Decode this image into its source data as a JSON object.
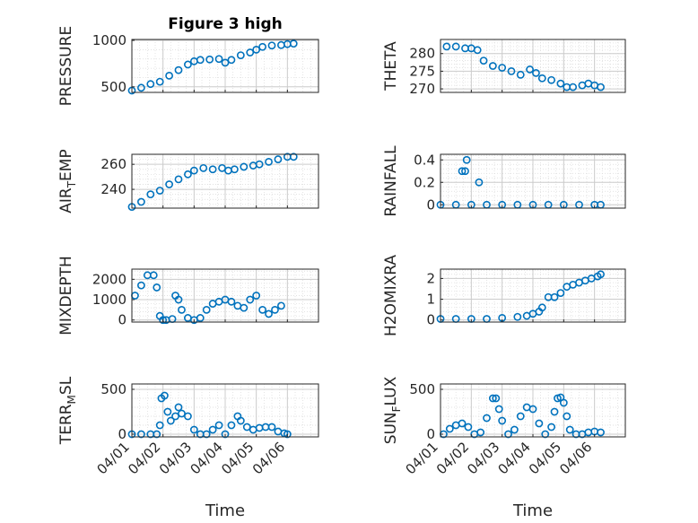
{
  "figure_title": "Figure 3 high",
  "xlabel": "Time",
  "x_ticks": [
    "04/01",
    "04/02",
    "04/03",
    "04/04",
    "04/05",
    "04/06"
  ],
  "marker_color": "#0072BD",
  "chart_data": [
    {
      "type": "scatter",
      "id": "p1",
      "title": "Figure 3 high",
      "ylabel": "PRESSURE",
      "ylim": [
        440,
        1010
      ],
      "yticks": [
        {
          "v": 500,
          "t": "500"
        },
        {
          "v": 1000,
          "t": "1000"
        }
      ],
      "points": [
        [
          0,
          460
        ],
        [
          0.3,
          490
        ],
        [
          0.6,
          530
        ],
        [
          0.9,
          555
        ],
        [
          1.2,
          620
        ],
        [
          1.5,
          680
        ],
        [
          1.8,
          740
        ],
        [
          2.0,
          775
        ],
        [
          2.2,
          790
        ],
        [
          2.5,
          795
        ],
        [
          2.8,
          800
        ],
        [
          3.0,
          760
        ],
        [
          3.2,
          790
        ],
        [
          3.5,
          840
        ],
        [
          3.8,
          870
        ],
        [
          4.0,
          900
        ],
        [
          4.2,
          930
        ],
        [
          4.5,
          945
        ],
        [
          4.8,
          950
        ],
        [
          5.0,
          960
        ],
        [
          5.2,
          965
        ]
      ]
    },
    {
      "type": "scatter",
      "id": "p2",
      "ylabel": "THETA",
      "ylim": [
        269,
        284
      ],
      "yticks": [
        {
          "v": 270,
          "t": "270"
        },
        {
          "v": 275,
          "t": "275"
        },
        {
          "v": 280,
          "t": "280"
        }
      ],
      "points": [
        [
          0.2,
          282
        ],
        [
          0.5,
          282
        ],
        [
          0.8,
          281.5
        ],
        [
          1.0,
          281.5
        ],
        [
          1.2,
          281
        ],
        [
          1.4,
          278
        ],
        [
          1.7,
          276.5
        ],
        [
          2.0,
          276
        ],
        [
          2.3,
          275
        ],
        [
          2.6,
          274
        ],
        [
          2.9,
          275.5
        ],
        [
          3.1,
          274.5
        ],
        [
          3.3,
          273
        ],
        [
          3.6,
          272.5
        ],
        [
          3.9,
          271.5
        ],
        [
          4.1,
          270.5
        ],
        [
          4.3,
          270.5
        ],
        [
          4.6,
          271
        ],
        [
          4.8,
          271.5
        ],
        [
          5.0,
          271
        ],
        [
          5.2,
          270.5
        ]
      ]
    },
    {
      "type": "scatter",
      "id": "p3",
      "ylabel": "AIR_TEMP",
      "ylim": [
        225,
        268
      ],
      "yticks": [
        {
          "v": 240,
          "t": "240"
        },
        {
          "v": 260,
          "t": "260"
        }
      ],
      "points": [
        [
          0,
          226
        ],
        [
          0.3,
          230
        ],
        [
          0.6,
          236
        ],
        [
          0.9,
          239
        ],
        [
          1.2,
          244
        ],
        [
          1.5,
          248
        ],
        [
          1.8,
          252
        ],
        [
          2.0,
          255
        ],
        [
          2.3,
          257
        ],
        [
          2.6,
          256
        ],
        [
          2.9,
          257
        ],
        [
          3.1,
          255
        ],
        [
          3.3,
          256
        ],
        [
          3.6,
          258
        ],
        [
          3.9,
          259
        ],
        [
          4.1,
          260
        ],
        [
          4.4,
          262
        ],
        [
          4.7,
          264
        ],
        [
          5.0,
          266
        ],
        [
          5.2,
          266
        ]
      ]
    },
    {
      "type": "scatter",
      "id": "p4",
      "ylabel": "RAINFALL",
      "ylim": [
        -0.03,
        0.45
      ],
      "yticks": [
        {
          "v": 0,
          "t": "0"
        },
        {
          "v": 0.2,
          "t": "0.2"
        },
        {
          "v": 0.4,
          "t": "0.4"
        }
      ],
      "points": [
        [
          0,
          0
        ],
        [
          0.5,
          0
        ],
        [
          1.0,
          0
        ],
        [
          1.5,
          0
        ],
        [
          2.0,
          0
        ],
        [
          2.5,
          0
        ],
        [
          3.0,
          0
        ],
        [
          3.5,
          0
        ],
        [
          4.0,
          0
        ],
        [
          4.5,
          0
        ],
        [
          5.0,
          0
        ],
        [
          5.2,
          0
        ],
        [
          0.7,
          0.3
        ],
        [
          0.8,
          0.3
        ],
        [
          0.85,
          0.4
        ],
        [
          1.25,
          0.2
        ]
      ]
    },
    {
      "type": "scatter",
      "id": "p5",
      "ylabel": "MIXDEPTH",
      "ylim": [
        -100,
        2500
      ],
      "yticks": [
        {
          "v": 0,
          "t": "0"
        },
        {
          "v": 1000,
          "t": "1000"
        },
        {
          "v": 2000,
          "t": "2000"
        }
      ],
      "points": [
        [
          0.1,
          1200
        ],
        [
          0.3,
          1700
        ],
        [
          0.5,
          2200
        ],
        [
          0.7,
          2200
        ],
        [
          0.8,
          1600
        ],
        [
          0.9,
          200
        ],
        [
          1.0,
          0
        ],
        [
          1.1,
          0
        ],
        [
          1.3,
          50
        ],
        [
          1.4,
          1200
        ],
        [
          1.5,
          1000
        ],
        [
          1.6,
          500
        ],
        [
          1.8,
          100
        ],
        [
          2.0,
          0
        ],
        [
          2.2,
          100
        ],
        [
          2.4,
          500
        ],
        [
          2.6,
          800
        ],
        [
          2.8,
          900
        ],
        [
          3.0,
          1000
        ],
        [
          3.2,
          900
        ],
        [
          3.4,
          700
        ],
        [
          3.6,
          600
        ],
        [
          3.8,
          1000
        ],
        [
          4.0,
          1200
        ],
        [
          4.2,
          500
        ],
        [
          4.4,
          300
        ],
        [
          4.6,
          500
        ],
        [
          4.8,
          700
        ]
      ]
    },
    {
      "type": "scatter",
      "id": "p6",
      "ylabel": "H2OMIXRA",
      "ylim": [
        -0.1,
        2.45
      ],
      "yticks": [
        {
          "v": 0,
          "t": "0"
        },
        {
          "v": 1,
          "t": "1"
        },
        {
          "v": 2,
          "t": "2"
        }
      ],
      "points": [
        [
          0,
          0.05
        ],
        [
          0.5,
          0.05
        ],
        [
          1.0,
          0.05
        ],
        [
          1.5,
          0.05
        ],
        [
          2.0,
          0.1
        ],
        [
          2.5,
          0.15
        ],
        [
          2.8,
          0.2
        ],
        [
          3.0,
          0.3
        ],
        [
          3.2,
          0.4
        ],
        [
          3.3,
          0.6
        ],
        [
          3.5,
          1.1
        ],
        [
          3.7,
          1.1
        ],
        [
          3.9,
          1.3
        ],
        [
          4.1,
          1.6
        ],
        [
          4.3,
          1.7
        ],
        [
          4.5,
          1.8
        ],
        [
          4.7,
          1.9
        ],
        [
          4.9,
          2.0
        ],
        [
          5.1,
          2.1
        ],
        [
          5.2,
          2.2
        ]
      ]
    },
    {
      "type": "scatter",
      "id": "p7",
      "ylabel": "TERR_MSL",
      "ylim": [
        -30,
        560
      ],
      "yticks": [
        {
          "v": 0,
          "t": "0"
        },
        {
          "v": 500,
          "t": "500"
        }
      ],
      "points": [
        [
          0,
          0
        ],
        [
          0.3,
          0
        ],
        [
          0.6,
          0
        ],
        [
          0.8,
          0
        ],
        [
          0.9,
          100
        ],
        [
          0.95,
          400
        ],
        [
          1.05,
          430
        ],
        [
          1.15,
          250
        ],
        [
          1.25,
          150
        ],
        [
          1.4,
          200
        ],
        [
          1.5,
          300
        ],
        [
          1.6,
          230
        ],
        [
          1.8,
          200
        ],
        [
          2.0,
          50
        ],
        [
          2.2,
          0
        ],
        [
          2.4,
          0
        ],
        [
          2.6,
          50
        ],
        [
          2.8,
          100
        ],
        [
          3.0,
          0
        ],
        [
          3.2,
          100
        ],
        [
          3.4,
          200
        ],
        [
          3.5,
          150
        ],
        [
          3.7,
          80
        ],
        [
          3.9,
          50
        ],
        [
          4.1,
          70
        ],
        [
          4.3,
          80
        ],
        [
          4.5,
          80
        ],
        [
          4.7,
          30
        ],
        [
          4.9,
          10
        ],
        [
          5.0,
          0
        ]
      ]
    },
    {
      "type": "scatter",
      "id": "p8",
      "ylabel": "SUN_FLUX",
      "ylim": [
        -30,
        560
      ],
      "yticks": [
        {
          "v": 0,
          "t": "0"
        },
        {
          "v": 500,
          "t": "500"
        }
      ],
      "points": [
        [
          0.1,
          0
        ],
        [
          0.3,
          60
        ],
        [
          0.5,
          100
        ],
        [
          0.7,
          120
        ],
        [
          0.9,
          80
        ],
        [
          1.1,
          0
        ],
        [
          1.3,
          20
        ],
        [
          1.5,
          180
        ],
        [
          1.7,
          400
        ],
        [
          1.8,
          400
        ],
        [
          1.9,
          280
        ],
        [
          2.0,
          150
        ],
        [
          2.2,
          0
        ],
        [
          2.4,
          50
        ],
        [
          2.6,
          200
        ],
        [
          2.8,
          300
        ],
        [
          3.0,
          280
        ],
        [
          3.2,
          120
        ],
        [
          3.4,
          0
        ],
        [
          3.6,
          80
        ],
        [
          3.7,
          250
        ],
        [
          3.8,
          400
        ],
        [
          3.9,
          410
        ],
        [
          4.0,
          350
        ],
        [
          4.1,
          200
        ],
        [
          4.2,
          50
        ],
        [
          4.4,
          0
        ],
        [
          4.6,
          0
        ],
        [
          4.8,
          20
        ],
        [
          5.0,
          30
        ],
        [
          5.2,
          20
        ]
      ]
    }
  ]
}
